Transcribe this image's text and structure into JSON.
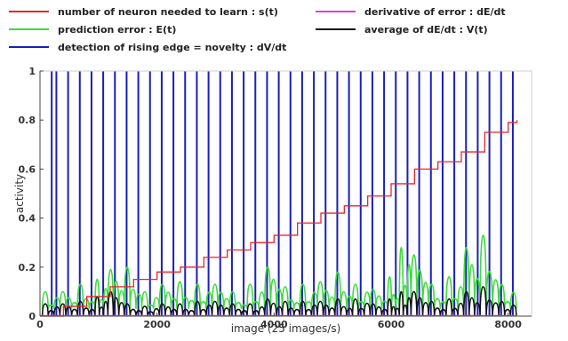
{
  "chart_data": {
    "type": "line",
    "title": "",
    "xlabel": "image (25 images/s)",
    "ylabel": "activity",
    "xlim": [
      0,
      8400
    ],
    "ylim": [
      0,
      1
    ],
    "xticks": [
      0,
      2000,
      4000,
      6000,
      8000
    ],
    "xtick_labels": [
      "0",
      "2000",
      "4000",
      "6000",
      "8000"
    ],
    "yticks": [
      0,
      0.2,
      0.4,
      0.6,
      0.8,
      1
    ],
    "ytick_labels": [
      "0",
      "0.2",
      "0.4",
      "0.6",
      "0.8",
      "1"
    ],
    "grid": false,
    "legend_position": "top",
    "series": [
      {
        "name": "number of neuron needed to learn : s(t)",
        "color": "#e8262b",
        "x": [
          0,
          400,
          800,
          1200,
          1600,
          2000,
          2400,
          2800,
          3200,
          3600,
          4000,
          4400,
          4800,
          5200,
          5600,
          6000,
          6400,
          6800,
          7200,
          7600,
          8000,
          8150
        ],
        "y": [
          0.0,
          0.04,
          0.08,
          0.12,
          0.15,
          0.18,
          0.2,
          0.24,
          0.27,
          0.3,
          0.33,
          0.38,
          0.42,
          0.45,
          0.49,
          0.54,
          0.6,
          0.63,
          0.67,
          0.75,
          0.79,
          0.8
        ]
      },
      {
        "name": "derivative of error : dE/dt",
        "color": "#e040e0",
        "x": [
          0,
          8150
        ],
        "y": [
          0.002,
          0.002
        ]
      },
      {
        "name": "prediction error : E(t)",
        "color": "#3ddc3d",
        "x": [
          80,
          380,
          680,
          980,
          1200,
          1480,
          1780,
          2080,
          2380,
          2680,
          2980,
          3280,
          3580,
          3880,
          4180,
          4480,
          4780,
          5080,
          5380,
          5680,
          5980,
          6180,
          6380,
          6680,
          6980,
          7280,
          7560,
          7880
        ],
        "y": [
          0.1,
          0.1,
          0.13,
          0.15,
          0.19,
          0.2,
          0.1,
          0.13,
          0.14,
          0.13,
          0.13,
          0.1,
          0.13,
          0.2,
          0.12,
          0.13,
          0.14,
          0.18,
          0.13,
          0.11,
          0.16,
          0.28,
          0.25,
          0.13,
          0.16,
          0.28,
          0.33,
          0.13
        ]
      },
      {
        "name": "average of dE/dt : V(t)",
        "color": "#111111",
        "x": [
          80,
          380,
          680,
          980,
          1200,
          1480,
          1780,
          2080,
          2380,
          2680,
          2980,
          3280,
          3580,
          3880,
          4180,
          4480,
          4780,
          5080,
          5380,
          5680,
          5980,
          6180,
          6380,
          6680,
          6980,
          7280,
          7560,
          7880
        ],
        "y": [
          0.05,
          0.05,
          0.06,
          0.08,
          0.1,
          0.05,
          0.04,
          0.05,
          0.05,
          0.06,
          0.06,
          0.05,
          0.05,
          0.07,
          0.06,
          0.06,
          0.06,
          0.07,
          0.07,
          0.05,
          0.07,
          0.1,
          0.1,
          0.06,
          0.07,
          0.1,
          0.12,
          0.06
        ]
      },
      {
        "name": "detection of rising edge = novelty : dV/dt",
        "color": "#1a1fb8",
        "spike_x": [
          200,
          280,
          480,
          680,
          880,
          1080,
          1280,
          1480,
          1680,
          1880,
          2080,
          2280,
          2480,
          2680,
          2880,
          3080,
          3280,
          3480,
          3680,
          3880,
          4080,
          4280,
          4480,
          4680,
          4880,
          5080,
          5280,
          5480,
          5680,
          5880,
          6080,
          6280,
          6480,
          6680,
          6880,
          7080,
          7280,
          7480,
          7680,
          7880,
          8080
        ],
        "spike_y": 1
      }
    ]
  }
}
